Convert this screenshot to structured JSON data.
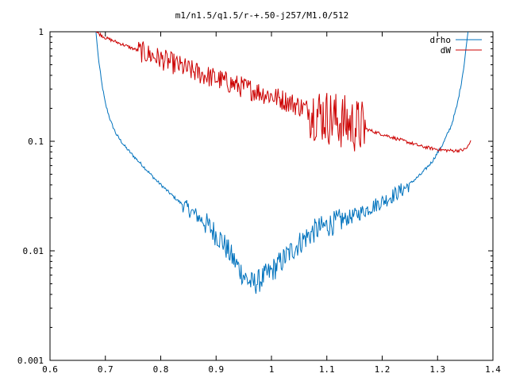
{
  "chart_data": {
    "type": "line",
    "title": "m1/n1.5/q1.5/r-+.50-j257/M1.0/512",
    "xlabel": "",
    "ylabel": "",
    "xlim": [
      0.6,
      1.4
    ],
    "ylim": [
      0.001,
      1
    ],
    "yscale": "log",
    "grid": false,
    "legend": "top-right",
    "x_ticks": [
      {
        "value": 0.6,
        "label": "0.6"
      },
      {
        "value": 0.7,
        "label": "0.7"
      },
      {
        "value": 0.8,
        "label": "0.8"
      },
      {
        "value": 0.9,
        "label": "0.9"
      },
      {
        "value": 1.0,
        "label": "1"
      },
      {
        "value": 1.1,
        "label": "1.1"
      },
      {
        "value": 1.2,
        "label": "1.2"
      },
      {
        "value": 1.3,
        "label": "1.3"
      },
      {
        "value": 1.4,
        "label": "1.4"
      }
    ],
    "y_ticks": [
      {
        "value": 1,
        "label": "1"
      },
      {
        "value": 0.1,
        "label": "0.1"
      },
      {
        "value": 0.01,
        "label": "0.01"
      },
      {
        "value": 0.001,
        "label": "0.001"
      }
    ],
    "series": [
      {
        "name": "drho",
        "color": "#0072bd",
        "noise": 0.07,
        "points": [
          [
            0.683,
            1.0
          ],
          [
            0.687,
            0.6
          ],
          [
            0.693,
            0.35
          ],
          [
            0.7,
            0.22
          ],
          [
            0.71,
            0.15
          ],
          [
            0.72,
            0.115
          ],
          [
            0.735,
            0.09
          ],
          [
            0.75,
            0.074
          ],
          [
            0.77,
            0.058
          ],
          [
            0.79,
            0.045
          ],
          [
            0.81,
            0.036
          ],
          [
            0.83,
            0.029
          ],
          [
            0.85,
            0.024
          ],
          [
            0.87,
            0.02
          ],
          [
            0.89,
            0.016
          ],
          [
            0.91,
            0.0125
          ],
          [
            0.93,
            0.0085
          ],
          [
            0.945,
            0.0065
          ],
          [
            0.955,
            0.0055
          ],
          [
            0.965,
            0.005
          ],
          [
            0.975,
            0.0052
          ],
          [
            0.985,
            0.0057
          ],
          [
            1.0,
            0.0065
          ],
          [
            1.02,
            0.0082
          ],
          [
            1.04,
            0.0105
          ],
          [
            1.06,
            0.013
          ],
          [
            1.08,
            0.0155
          ],
          [
            1.1,
            0.017
          ],
          [
            1.12,
            0.0185
          ],
          [
            1.15,
            0.021
          ],
          [
            1.18,
            0.025
          ],
          [
            1.21,
            0.03
          ],
          [
            1.24,
            0.037
          ],
          [
            1.27,
            0.05
          ],
          [
            1.29,
            0.065
          ],
          [
            1.31,
            0.095
          ],
          [
            1.325,
            0.14
          ],
          [
            1.335,
            0.21
          ],
          [
            1.342,
            0.32
          ],
          [
            1.348,
            0.5
          ],
          [
            1.352,
            0.75
          ],
          [
            1.355,
            1.0
          ]
        ]
      },
      {
        "name": "dW",
        "color": "#cc0000",
        "noise": 0.1,
        "points": [
          [
            0.683,
            1.0
          ],
          [
            0.7,
            0.88
          ],
          [
            0.73,
            0.77
          ],
          [
            0.76,
            0.67
          ],
          [
            0.79,
            0.59
          ],
          [
            0.82,
            0.52
          ],
          [
            0.85,
            0.45
          ],
          [
            0.88,
            0.4
          ],
          [
            0.91,
            0.36
          ],
          [
            0.94,
            0.32
          ],
          [
            0.97,
            0.29
          ],
          [
            1.0,
            0.26
          ],
          [
            1.03,
            0.23
          ],
          [
            1.06,
            0.2
          ],
          [
            1.09,
            0.175
          ],
          [
            1.12,
            0.155
          ],
          [
            1.15,
            0.14
          ],
          [
            1.17,
            0.13
          ],
          [
            1.19,
            0.12
          ],
          [
            1.21,
            0.112
          ],
          [
            1.23,
            0.104
          ],
          [
            1.25,
            0.097
          ],
          [
            1.27,
            0.09
          ],
          [
            1.29,
            0.086
          ],
          [
            1.31,
            0.083
          ],
          [
            1.33,
            0.082
          ],
          [
            1.345,
            0.083
          ],
          [
            1.352,
            0.086
          ],
          [
            1.357,
            0.093
          ],
          [
            1.36,
            0.102
          ]
        ]
      }
    ]
  }
}
